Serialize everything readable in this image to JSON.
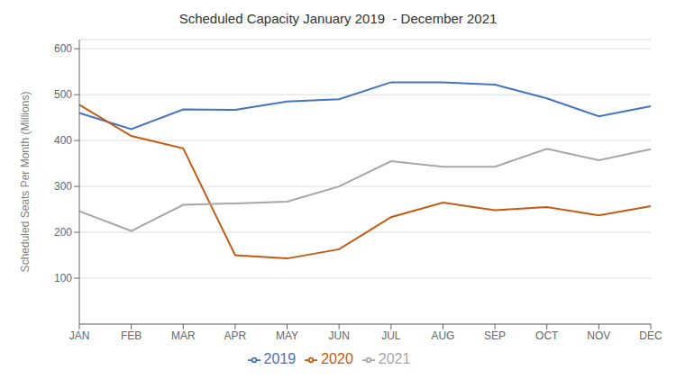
{
  "chart_data": {
    "type": "line",
    "title": "Scheduled Capacity January 2019  - December 2021",
    "ylabel": "Scheduled Seats Per Month (Millions)",
    "categories": [
      "JAN",
      "FEB",
      "MAR",
      "APR",
      "MAY",
      "JUN",
      "JUL",
      "AUG",
      "SEP",
      "OCT",
      "NOV",
      "DEC"
    ],
    "series": [
      {
        "name": "2019",
        "color": "#4472C4",
        "values": [
          460,
          425,
          468,
          467,
          485,
          490,
          527,
          527,
          522,
          492,
          453,
          475
        ]
      },
      {
        "name": "2020",
        "color": "#C55A11",
        "values": [
          478,
          410,
          383,
          150,
          143,
          163,
          233,
          265,
          248,
          255,
          237,
          257
        ]
      },
      {
        "name": "2021",
        "color": "#A6A6A6",
        "values": [
          246,
          203,
          260,
          263,
          267,
          300,
          355,
          343,
          343,
          382,
          357,
          381
        ]
      }
    ],
    "ylim": [
      0,
      620
    ],
    "yticks": [
      100,
      200,
      300,
      400,
      500,
      600
    ],
    "grid": true,
    "legend": "bottom"
  }
}
